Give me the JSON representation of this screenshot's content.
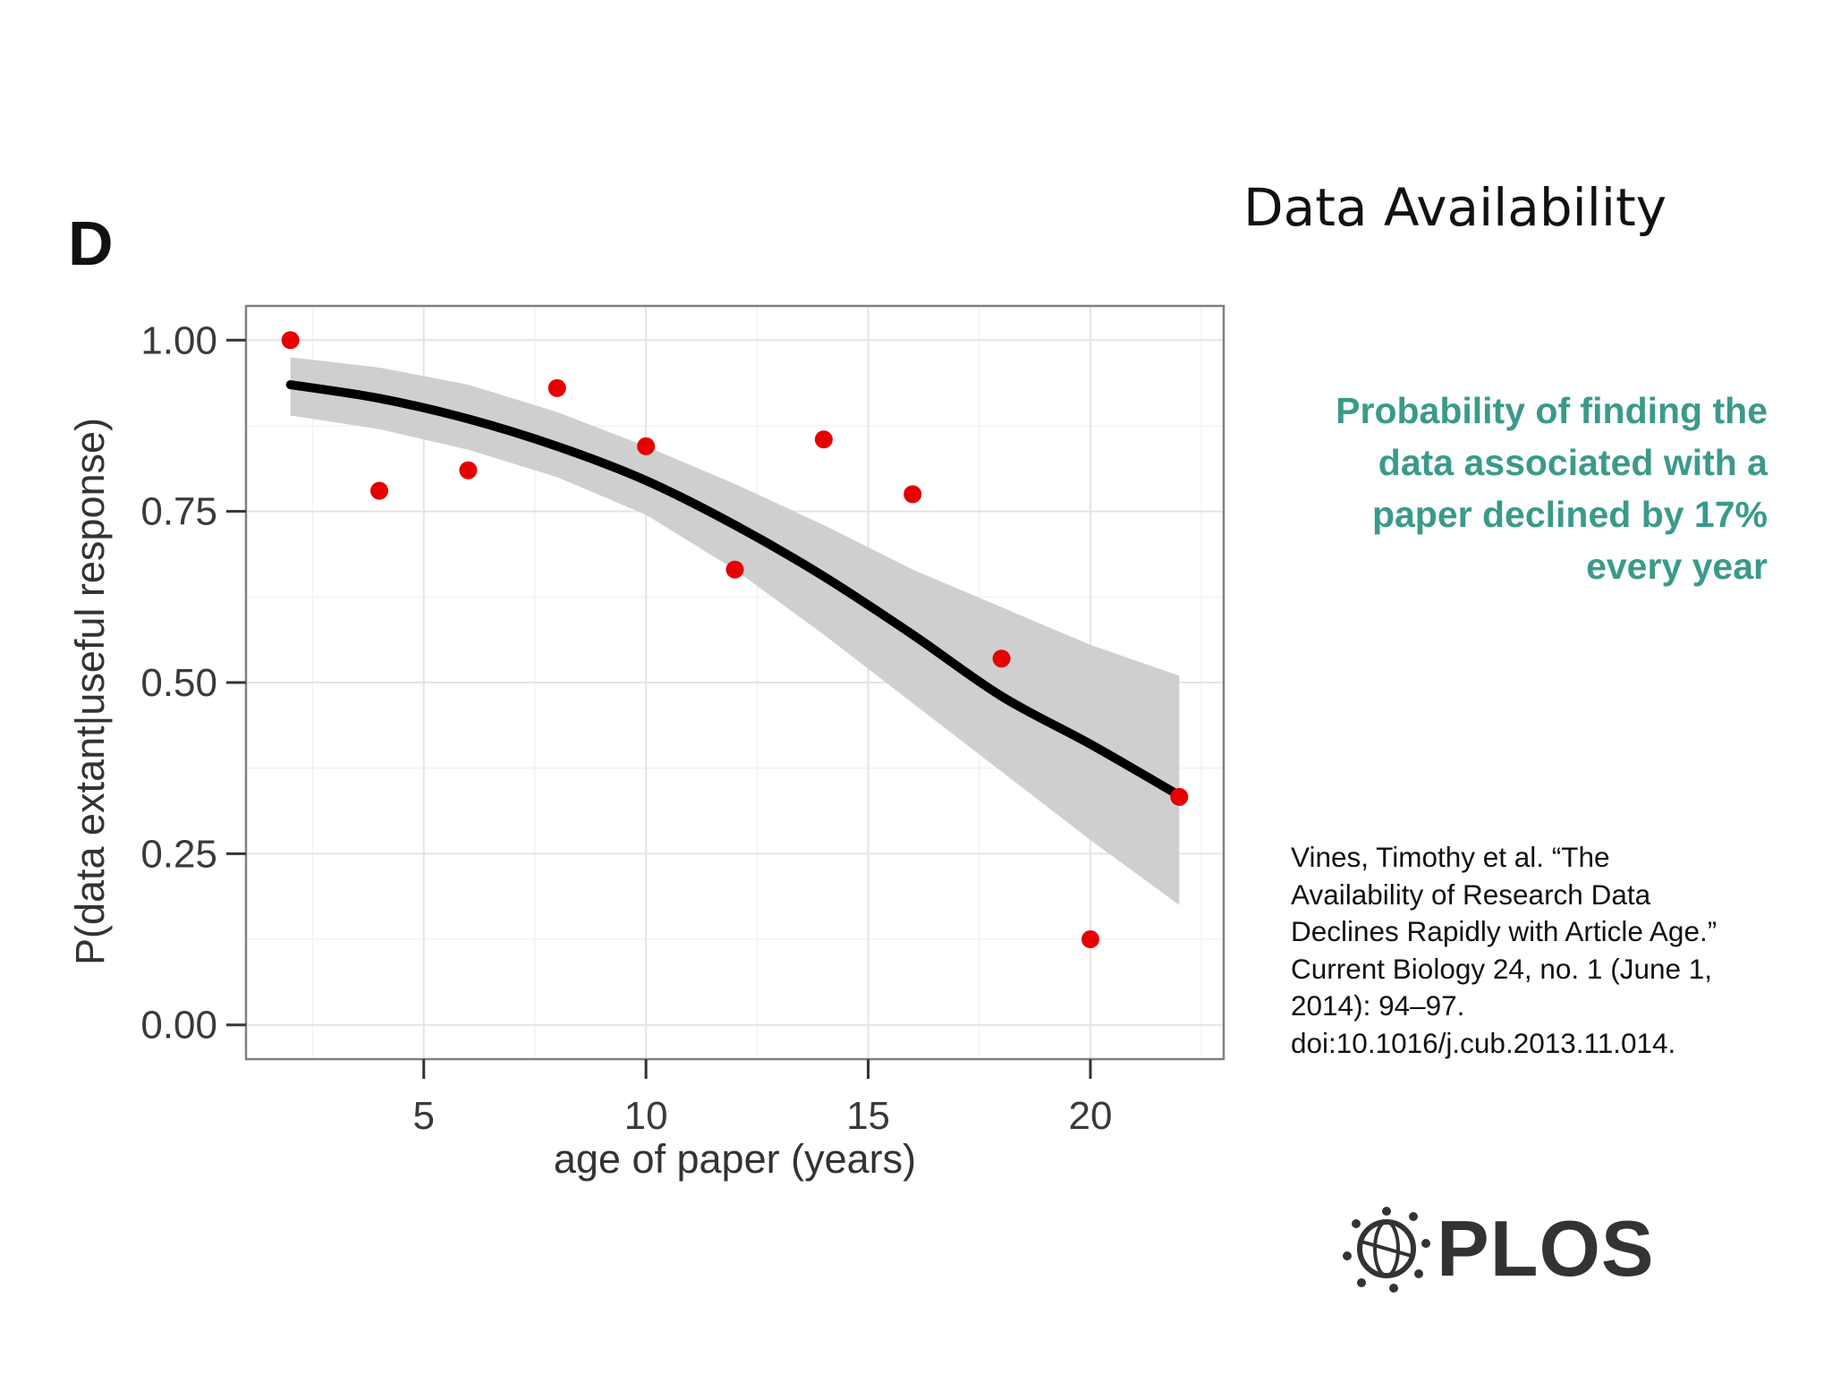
{
  "slide": {
    "title": "Data Availability",
    "highlight_lines": [
      "Probability of finding the",
      "data associated with a",
      "paper declined by 17%",
      "every year"
    ],
    "citation_lines": [
      "Vines, Timothy et al. “The",
      "Availability of Research Data",
      "Declines Rapidly with Article Age.”",
      "Current Biology 24, no. 1 (June 1,",
      "2014): 94–97.",
      "doi:10.1016/j.cub.2013.11.014."
    ],
    "logo_text": "PLOS",
    "logo_icon": "plos-globe-icon",
    "highlight_color": "#3a9a8a"
  },
  "chart_data": {
    "type": "scatter",
    "panel_label": "D",
    "xlabel": "age of paper (years)",
    "ylabel": "P(data extant|useful response)",
    "xlim": [
      1.0,
      23.0
    ],
    "ylim": [
      -0.05,
      1.05
    ],
    "x_ticks": [
      5,
      10,
      15,
      20
    ],
    "y_ticks": [
      0.0,
      0.25,
      0.5,
      0.75,
      1.0
    ],
    "y_tick_labels": [
      "0.00",
      "0.25",
      "0.50",
      "0.75",
      "1.00"
    ],
    "grid": true,
    "points": {
      "x": [
        2,
        4,
        6,
        8,
        10,
        12,
        14,
        16,
        18,
        20,
        22
      ],
      "y": [
        1.0,
        0.78,
        0.81,
        0.93,
        0.845,
        0.665,
        0.855,
        0.775,
        0.535,
        0.125,
        0.333
      ],
      "color": "#e60000"
    },
    "fit_line": {
      "x": [
        2,
        4,
        6,
        8,
        10,
        12,
        14,
        16,
        18,
        20,
        22
      ],
      "y": [
        0.935,
        0.915,
        0.885,
        0.845,
        0.795,
        0.73,
        0.655,
        0.57,
        0.48,
        0.41,
        0.335
      ],
      "color": "#000000"
    },
    "confidence_band": {
      "x": [
        2,
        4,
        6,
        8,
        10,
        12,
        14,
        16,
        18,
        20,
        22
      ],
      "lower": [
        0.89,
        0.87,
        0.84,
        0.8,
        0.745,
        0.665,
        0.57,
        0.47,
        0.37,
        0.27,
        0.175
      ],
      "upper": [
        0.975,
        0.96,
        0.935,
        0.895,
        0.845,
        0.79,
        0.73,
        0.665,
        0.61,
        0.555,
        0.51
      ],
      "color": "#cccccc"
    }
  }
}
